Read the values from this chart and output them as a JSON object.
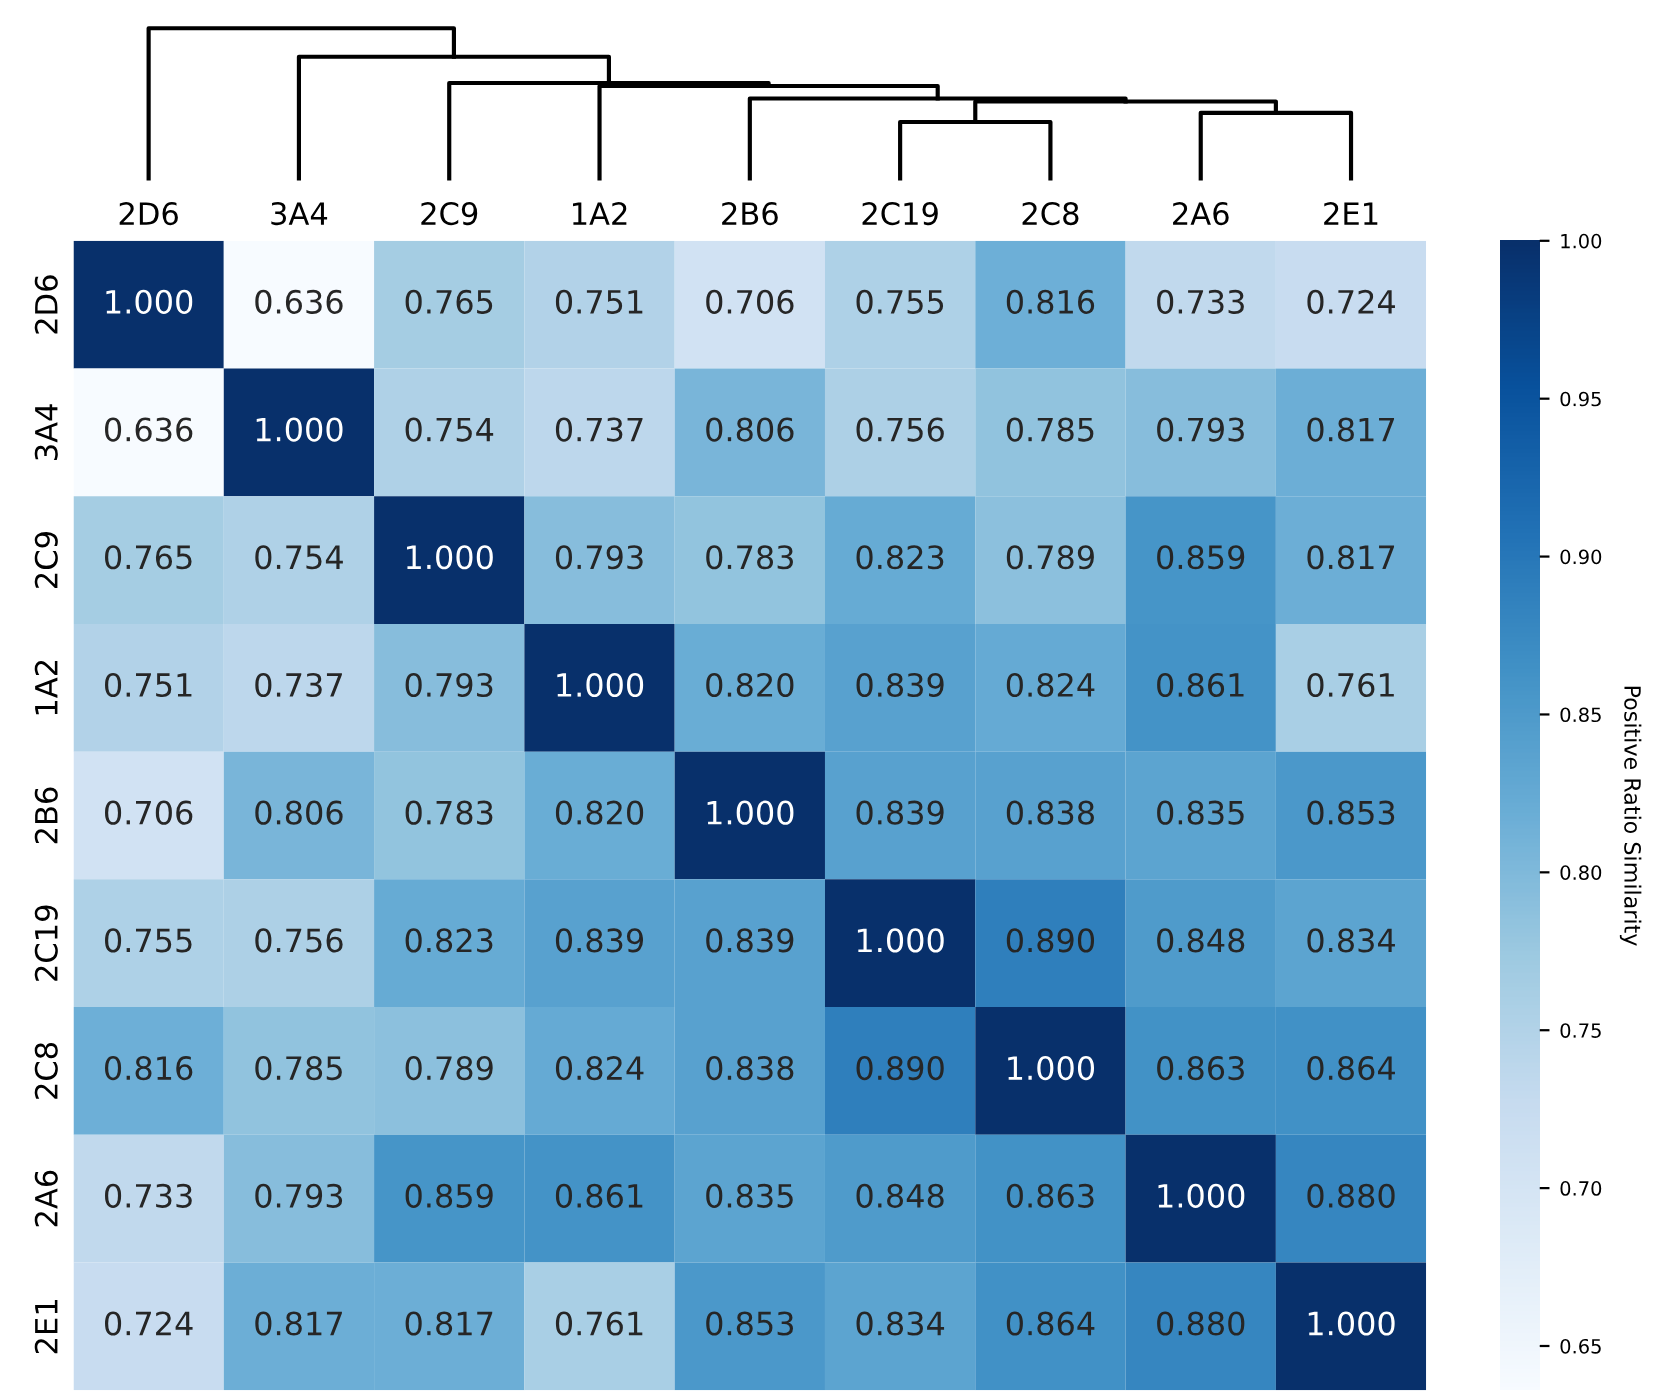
{
  "chart_data": {
    "type": "heatmap",
    "categories": [
      "2D6",
      "3A4",
      "2C9",
      "1A2",
      "2B6",
      "2C19",
      "2C8",
      "2A6",
      "2E1"
    ],
    "y_categories": [
      "2D6",
      "3A4",
      "2C9",
      "1A2",
      "2B6",
      "2C19",
      "2C8",
      "2A6",
      "2E1"
    ],
    "cells": [
      [
        1.0,
        0.636,
        0.765,
        0.751,
        0.706,
        0.755,
        0.816,
        0.733,
        0.724
      ],
      [
        0.636,
        1.0,
        0.754,
        0.737,
        0.806,
        0.756,
        0.785,
        0.793,
        0.817
      ],
      [
        0.765,
        0.754,
        1.0,
        0.793,
        0.783,
        0.823,
        0.789,
        0.859,
        0.817
      ],
      [
        0.751,
        0.737,
        0.793,
        1.0,
        0.82,
        0.839,
        0.824,
        0.861,
        0.761
      ],
      [
        0.706,
        0.806,
        0.783,
        0.82,
        1.0,
        0.839,
        0.838,
        0.835,
        0.853
      ],
      [
        0.755,
        0.756,
        0.823,
        0.839,
        0.839,
        1.0,
        0.89,
        0.848,
        0.834
      ],
      [
        0.816,
        0.785,
        0.789,
        0.824,
        0.838,
        0.89,
        1.0,
        0.863,
        0.864
      ],
      [
        0.733,
        0.793,
        0.859,
        0.861,
        0.835,
        0.848,
        0.863,
        1.0,
        0.88
      ],
      [
        0.724,
        0.817,
        0.817,
        0.761,
        0.853,
        0.834,
        0.864,
        0.88,
        1.0
      ]
    ],
    "cell_labels": [
      [
        "1.000",
        "0.636",
        "0.765",
        "0.751",
        "0.706",
        "0.755",
        "0.816",
        "0.733",
        "0.724"
      ],
      [
        "0.636",
        "1.000",
        "0.754",
        "0.737",
        "0.806",
        "0.756",
        "0.785",
        "0.793",
        "0.817"
      ],
      [
        "0.765",
        "0.754",
        "1.000",
        "0.793",
        "0.783",
        "0.823",
        "0.789",
        "0.859",
        "0.817"
      ],
      [
        "0.751",
        "0.737",
        "0.793",
        "1.000",
        "0.820",
        "0.839",
        "0.824",
        "0.861",
        "0.761"
      ],
      [
        "0.706",
        "0.806",
        "0.783",
        "0.820",
        "1.000",
        "0.839",
        "0.838",
        "0.835",
        "0.853"
      ],
      [
        "0.755",
        "0.756",
        "0.823",
        "0.839",
        "0.839",
        "1.000",
        "0.890",
        "0.848",
        "0.834"
      ],
      [
        "0.816",
        "0.785",
        "0.789",
        "0.824",
        "0.838",
        "0.890",
        "1.000",
        "0.863",
        "0.864"
      ],
      [
        "0.733",
        "0.793",
        "0.859",
        "0.861",
        "0.835",
        "0.848",
        "0.863",
        "1.000",
        "0.880"
      ],
      [
        "0.724",
        "0.817",
        "0.817",
        "0.761",
        "0.853",
        "0.834",
        "0.864",
        "0.880",
        "1.000"
      ]
    ],
    "clim": [
      0.636,
      1.0
    ],
    "cticks": [
      {
        "value": 0.65,
        "label": "0.65"
      },
      {
        "value": 0.7,
        "label": "0.70"
      },
      {
        "value": 0.75,
        "label": "0.75"
      },
      {
        "value": 0.8,
        "label": "0.80"
      },
      {
        "value": 0.85,
        "label": "0.85"
      },
      {
        "value": 0.9,
        "label": "0.90"
      },
      {
        "value": 0.95,
        "label": "0.95"
      },
      {
        "value": 1.0,
        "label": "1.00"
      }
    ],
    "clabel": "Positive Ratio Similarity"
  }
}
